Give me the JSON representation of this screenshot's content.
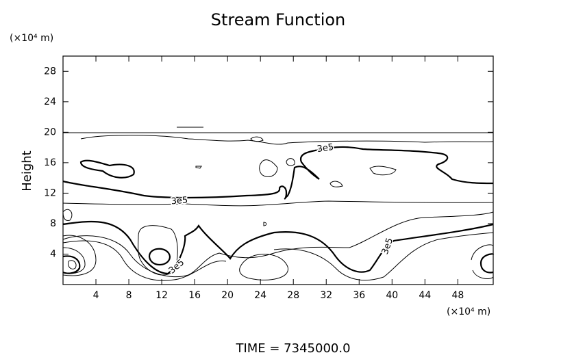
{
  "chart_data": {
    "type": "contour",
    "title": "Stream Function",
    "ylabel": "Height",
    "yunit": "(×10⁴ m)",
    "xunit": "(×10⁴ m)",
    "footer": "TIME  =  7345000.0",
    "contour_labels": [
      "3e5",
      "3e5",
      "3e5",
      "3e5"
    ],
    "xlim": [
      0,
      52.3
    ],
    "ylim": [
      0,
      30
    ],
    "xticks": [
      4,
      8,
      12,
      16,
      20,
      24,
      28,
      32,
      36,
      40,
      44,
      48
    ],
    "yticks": [
      4,
      8,
      12,
      16,
      20,
      24,
      28
    ]
  }
}
